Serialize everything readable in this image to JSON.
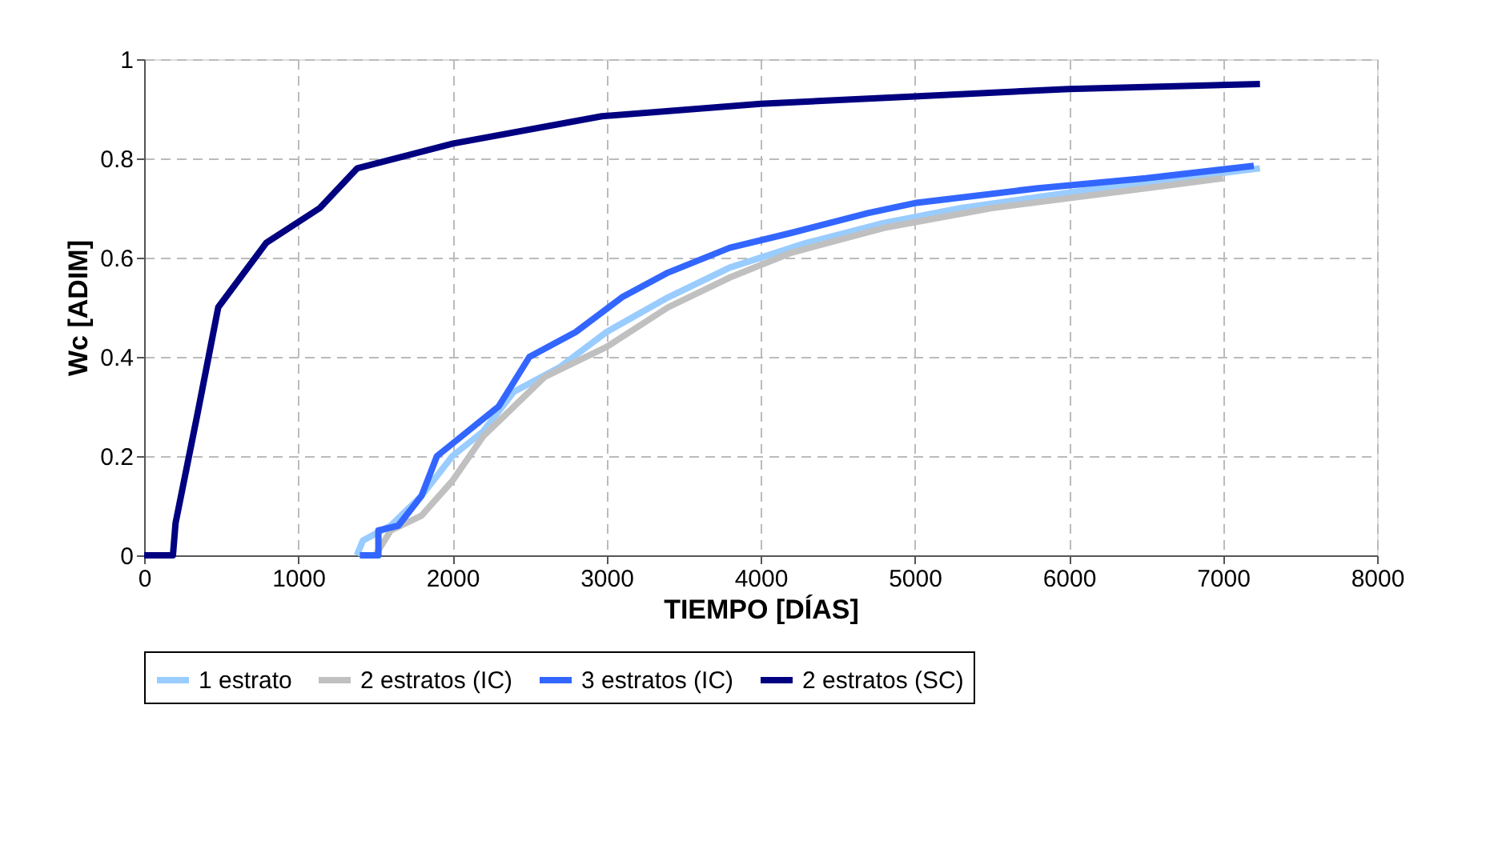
{
  "chart_data": {
    "type": "line",
    "xlabel": "TIEMPO [DÍAS]",
    "ylabel": "Wc [ADIM]",
    "xlim": [
      0,
      8000
    ],
    "xticks": [
      0,
      1000,
      2000,
      3000,
      4000,
      5000,
      6000,
      7000,
      8000
    ],
    "ylim": [
      0,
      1
    ],
    "yticks": [
      0,
      0.2,
      0.4,
      0.6,
      0.8,
      1
    ],
    "grid": true,
    "legend": "bottom",
    "line_style": "solid",
    "series": [
      {
        "name": "1 estrato",
        "color": "#99ccff",
        "x": [
          1380,
          1420,
          1600,
          1800,
          2000,
          2200,
          2400,
          2700,
          3000,
          3400,
          3800,
          4300,
          4800,
          5300,
          6200,
          7240
        ],
        "values": [
          0,
          0.03,
          0.06,
          0.12,
          0.2,
          0.25,
          0.33,
          0.38,
          0.45,
          0.52,
          0.58,
          0.63,
          0.67,
          0.7,
          0.74,
          0.78
        ]
      },
      {
        "name": "2 estratos (IC)",
        "color": "#c0c0c0",
        "x": [
          1500,
          1600,
          1800,
          2000,
          2200,
          2400,
          2600,
          3000,
          3400,
          3800,
          4200,
          4800,
          5500,
          6500,
          7000
        ],
        "values": [
          0,
          0.05,
          0.08,
          0.15,
          0.24,
          0.3,
          0.36,
          0.42,
          0.5,
          0.56,
          0.61,
          0.66,
          0.7,
          0.74,
          0.76
        ]
      },
      {
        "name": "3 estratos (IC)",
        "color": "#3366ff",
        "x": [
          1400,
          1520,
          1520,
          1650,
          1800,
          1900,
          2100,
          2300,
          2500,
          2800,
          3100,
          3400,
          3800,
          4200,
          4700,
          5000,
          5800,
          6500,
          7200
        ],
        "values": [
          0,
          0,
          0.05,
          0.06,
          0.12,
          0.2,
          0.25,
          0.3,
          0.4,
          0.45,
          0.52,
          0.57,
          0.62,
          0.65,
          0.69,
          0.71,
          0.74,
          0.76,
          0.785
        ]
      },
      {
        "name": "2 estratos (SC)",
        "color": "#000080",
        "x": [
          0,
          187,
          204,
          343,
          481,
          793,
          1140,
          1382,
          2005,
          2970,
          4000,
          5000,
          6000,
          7240
        ],
        "values": [
          0,
          0,
          0.065,
          0.28,
          0.5,
          0.63,
          0.7,
          0.78,
          0.83,
          0.885,
          0.91,
          0.925,
          0.94,
          0.95
        ]
      }
    ]
  }
}
